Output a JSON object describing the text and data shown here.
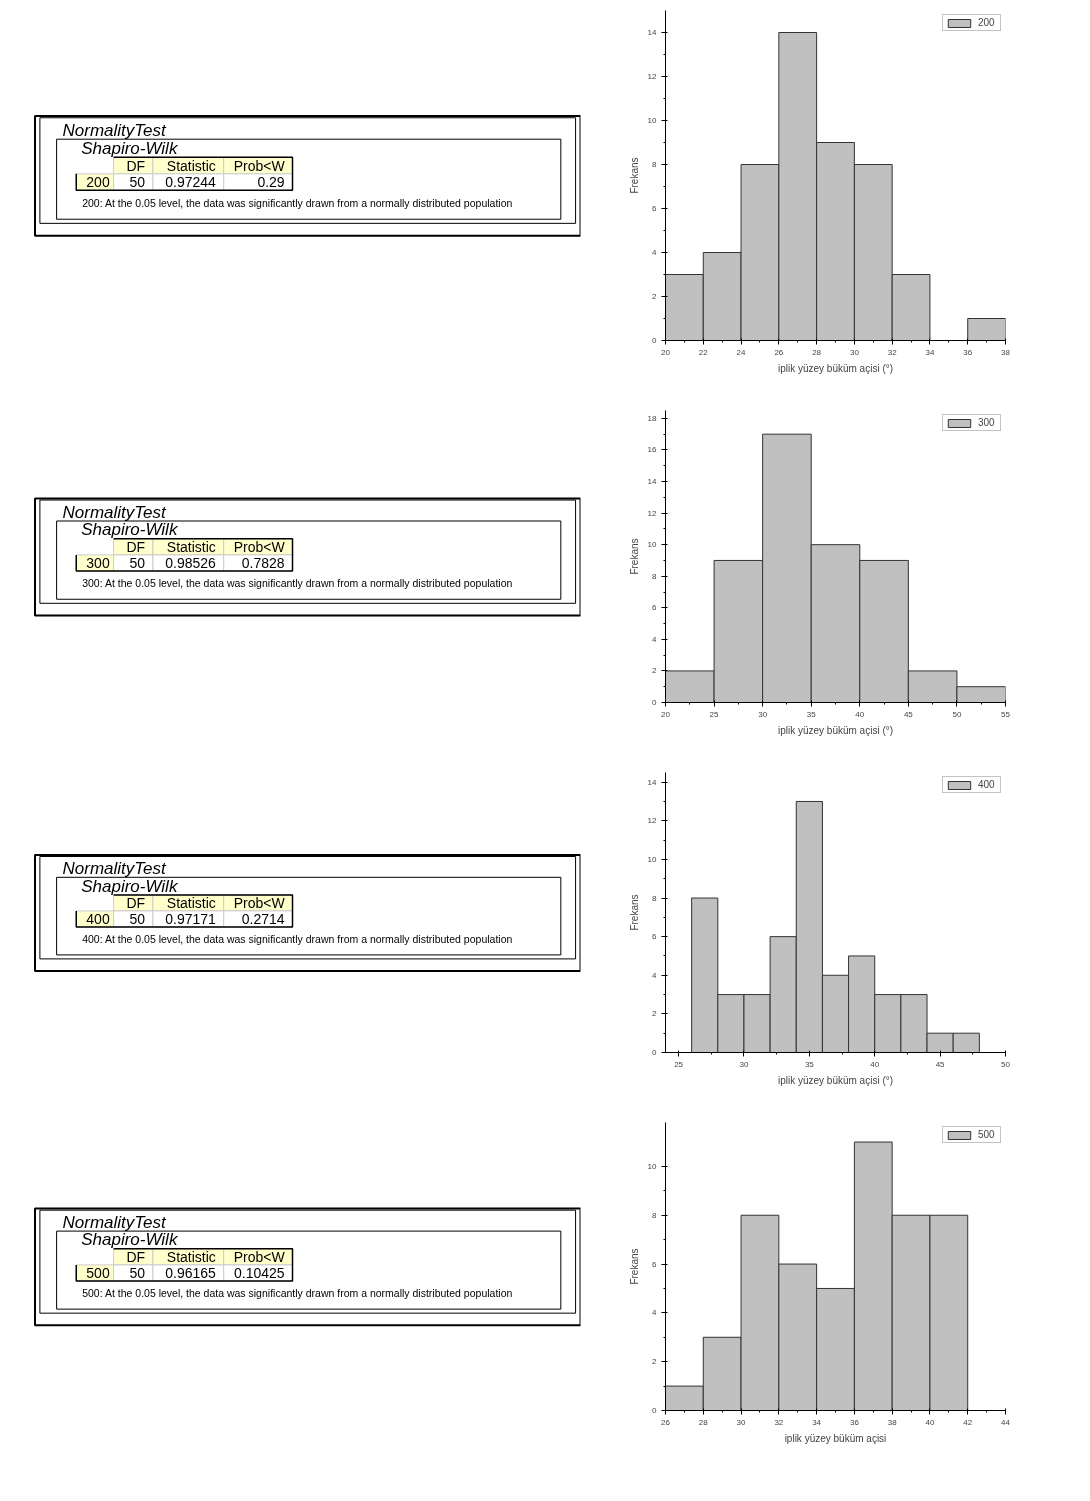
{
  "chart_data": [
    {
      "type": "other",
      "title": "NormalityTest",
      "subtitle": "Shapiro-Wilk",
      "categories": [
        "DF",
        "Statistic",
        "Prob<W"
      ],
      "y_categories": [
        "200"
      ],
      "cell_labels": [
        [
          "50",
          "0.97244",
          "0.29"
        ]
      ],
      "annotations": [
        "200: At the 0.05 level, the data was significantly drawn from a normally distributed population"
      ]
    },
    {
      "type": "histogram",
      "xlabel": "iplik yüzey büküm açisi (°)",
      "ylabel": "Frekans",
      "bins": [
        20,
        22,
        24,
        26,
        28,
        30,
        32,
        34,
        36,
        38
      ],
      "series": [
        {
          "name": "200",
          "color": "#c0c0c0",
          "values": [
            3,
            4,
            8,
            14,
            9,
            8,
            3,
            0,
            1
          ]
        }
      ],
      "xlim": [
        20,
        38
      ],
      "xticks": [
        20,
        22,
        24,
        26,
        28,
        30,
        32,
        34,
        36,
        38
      ],
      "ylim": [
        0,
        15
      ],
      "yticks": [
        0,
        2,
        4,
        6,
        8,
        10,
        12,
        14
      ],
      "legend": "top right"
    },
    {
      "type": "other",
      "title": "NormalityTest",
      "subtitle": "Shapiro-Wilk",
      "categories": [
        "DF",
        "Statistic",
        "Prob<W"
      ],
      "y_categories": [
        "300"
      ],
      "cell_labels": [
        [
          "50",
          "0.98526",
          "0.7828"
        ]
      ],
      "annotations": [
        "300: At the 0.05 level, the data was significantly drawn from a normally distributed population"
      ]
    },
    {
      "type": "histogram",
      "xlabel": "iplik yüzey büküm açisi (°)",
      "ylabel": "Frekans",
      "bins": [
        20,
        25,
        30,
        35,
        40,
        45,
        50,
        55
      ],
      "series": [
        {
          "name": "300",
          "color": "#c0c0c0",
          "values": [
            2,
            9,
            17,
            10,
            9,
            2,
            1
          ]
        }
      ],
      "xlim": [
        20,
        55
      ],
      "xticks": [
        20,
        25,
        30,
        35,
        40,
        45,
        50,
        55
      ],
      "ylim": [
        0,
        18.5
      ],
      "yticks": [
        0,
        2,
        4,
        6,
        8,
        10,
        12,
        14,
        16,
        18
      ],
      "legend": "top right"
    },
    {
      "type": "other",
      "title": "NormalityTest",
      "subtitle": "Shapiro-Wilk",
      "categories": [
        "DF",
        "Statistic",
        "Prob<W"
      ],
      "y_categories": [
        "400"
      ],
      "cell_labels": [
        [
          "50",
          "0.97171",
          "0.2714"
        ]
      ],
      "annotations": [
        "400: At the 0.05 level, the data was significantly drawn from a normally distributed population"
      ]
    },
    {
      "type": "histogram",
      "xlabel": "iplik yüzey büküm açisi (°)",
      "ylabel": "Frekans",
      "bins": [
        26,
        28,
        30,
        32,
        34,
        36,
        38,
        40,
        42,
        44,
        46,
        48
      ],
      "series": [
        {
          "name": "400",
          "color": "#c0c0c0",
          "values": [
            8,
            3,
            3,
            6,
            13,
            4,
            5,
            3,
            3,
            1,
            1
          ]
        }
      ],
      "xlim": [
        24,
        50
      ],
      "xticks": [
        25,
        30,
        35,
        40,
        45,
        50
      ],
      "ylim": [
        0,
        14.5
      ],
      "yticks": [
        0,
        2,
        4,
        6,
        8,
        10,
        12,
        14
      ],
      "legend": "top right"
    },
    {
      "type": "other",
      "title": "NormalityTest",
      "subtitle": "Shapiro-Wilk",
      "categories": [
        "DF",
        "Statistic",
        "Prob<W"
      ],
      "y_categories": [
        "500"
      ],
      "cell_labels": [
        [
          "50",
          "0.96165",
          "0.10425"
        ]
      ],
      "annotations": [
        "500: At the 0.05 level, the data was significantly drawn from a normally distributed population"
      ]
    },
    {
      "type": "histogram",
      "xlabel": "iplik yüzey büküm açisi",
      "ylabel": "Frekans",
      "bins": [
        26,
        28,
        30,
        32,
        34,
        36,
        38,
        40,
        42
      ],
      "series": [
        {
          "name": "500",
          "color": "#c0c0c0",
          "values": [
            1,
            3,
            8,
            6,
            5,
            11,
            8,
            8
          ]
        }
      ],
      "xlim": [
        26,
        44
      ],
      "xticks": [
        26,
        28,
        30,
        32,
        34,
        36,
        38,
        40,
        42,
        44
      ],
      "ylim": [
        0,
        11.8
      ],
      "yticks": [
        0,
        2,
        4,
        6,
        8,
        10
      ],
      "legend": "top right"
    }
  ]
}
